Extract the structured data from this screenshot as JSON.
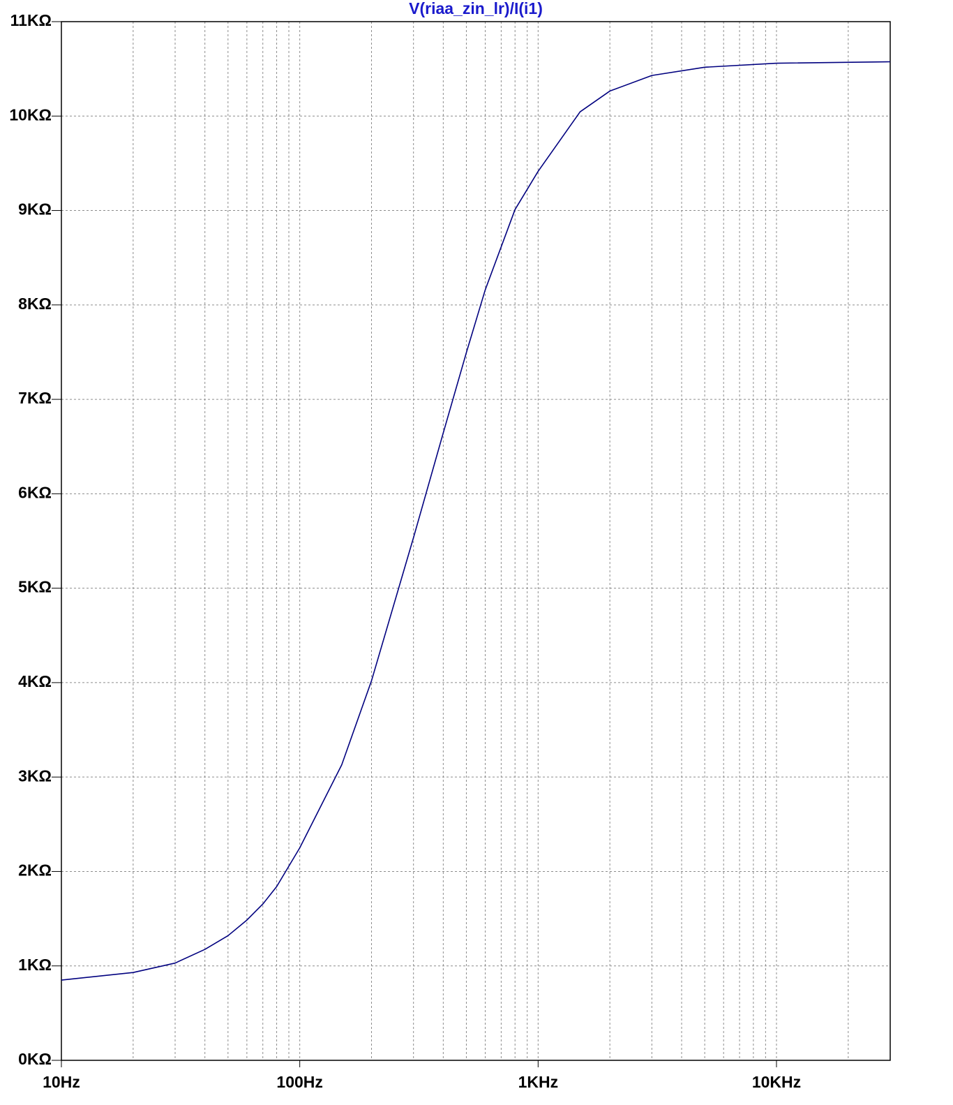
{
  "chart_data": {
    "type": "line",
    "title": "V(riaa_zin_lr)/I(i1)",
    "title_color": "#1a1acc",
    "x": [
      10,
      20,
      30,
      40,
      50,
      60,
      70,
      80,
      100,
      150,
      200,
      300,
      400,
      500,
      600,
      800,
      1000,
      1500,
      2000,
      3000,
      5000,
      10000,
      30000
    ],
    "series": [
      {
        "name": "V(riaa_zin_lr)/I(i1)",
        "color": "#00007f",
        "values": [
          850,
          930,
          1030,
          1175,
          1320,
          1485,
          1655,
          1840,
          2250,
          3130,
          4020,
          5535,
          6645,
          7495,
          8160,
          9010,
          9415,
          10045,
          10265,
          10430,
          10517,
          10560,
          10575
        ]
      }
    ],
    "xlim": [
      10,
      30000
    ],
    "xscale": "log",
    "xticks": [
      {
        "value": 10,
        "label": "10Hz"
      },
      {
        "value": 100,
        "label": "100Hz"
      },
      {
        "value": 1000,
        "label": "1KHz"
      },
      {
        "value": 10000,
        "label": "10KHz"
      }
    ],
    "ylim": [
      0,
      11000
    ],
    "yticks": [
      {
        "value": 0,
        "label": "0KΩ"
      },
      {
        "value": 1000,
        "label": "1KΩ"
      },
      {
        "value": 2000,
        "label": "2KΩ"
      },
      {
        "value": 3000,
        "label": "3KΩ"
      },
      {
        "value": 4000,
        "label": "4KΩ"
      },
      {
        "value": 5000,
        "label": "5KΩ"
      },
      {
        "value": 6000,
        "label": "6KΩ"
      },
      {
        "value": 7000,
        "label": "7KΩ"
      },
      {
        "value": 8000,
        "label": "8KΩ"
      },
      {
        "value": 9000,
        "label": "9KΩ"
      },
      {
        "value": 10000,
        "label": "10KΩ"
      },
      {
        "value": 11000,
        "label": "11KΩ"
      }
    ],
    "grid": true,
    "minor_grid": true
  }
}
